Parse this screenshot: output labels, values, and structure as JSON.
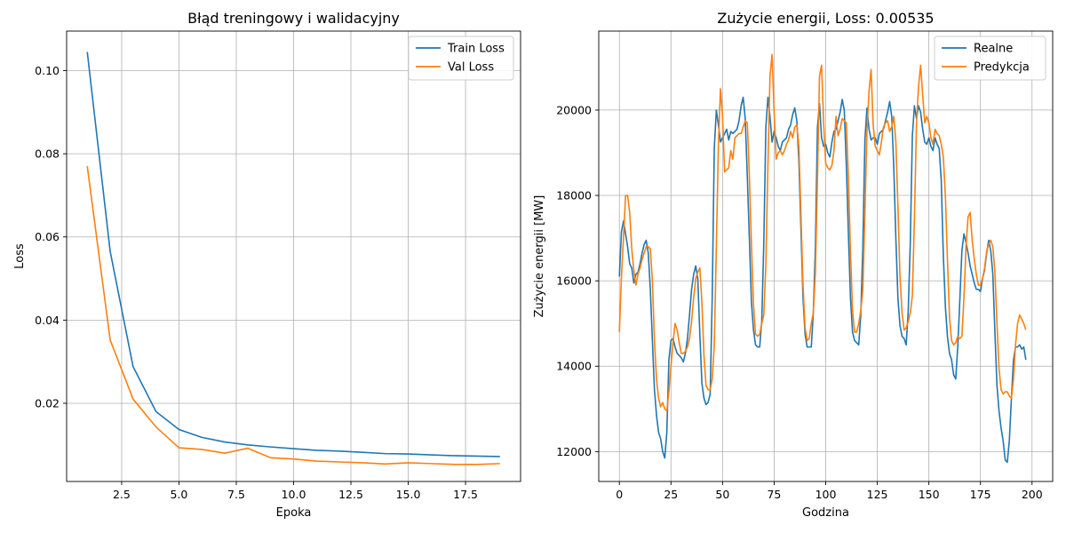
{
  "chart_data": [
    {
      "type": "line",
      "title": "Błąd treningowy i walidacyjny",
      "xlabel": "Epoka",
      "ylabel": "Loss",
      "xlim": [
        0.1,
        19.9
      ],
      "ylim": [
        0.0012,
        0.1095
      ],
      "xticks": [
        2.5,
        5.0,
        7.5,
        10.0,
        12.5,
        15.0,
        17.5
      ],
      "xtick_labels": [
        "2.5",
        "5.0",
        "7.5",
        "10.0",
        "12.5",
        "15.0",
        "17.5"
      ],
      "yticks": [
        0.02,
        0.04,
        0.06,
        0.08,
        0.1
      ],
      "ytick_labels": [
        "0.02",
        "0.04",
        "0.06",
        "0.08",
        "0.10"
      ],
      "grid": true,
      "legend_position": "top-right",
      "x": [
        1,
        2,
        3,
        4,
        5,
        6,
        7,
        8,
        9,
        10,
        11,
        12,
        13,
        14,
        15,
        16,
        17,
        18,
        19
      ],
      "series": [
        {
          "name": "Train Loss",
          "color": "#1f77b4",
          "values": [
            0.1045,
            0.0565,
            0.0288,
            0.018,
            0.0137,
            0.0118,
            0.0107,
            0.01,
            0.0095,
            0.0091,
            0.0087,
            0.0085,
            0.0082,
            0.0079,
            0.0078,
            0.0076,
            0.0074,
            0.0073,
            0.0072
          ]
        },
        {
          "name": "Val Loss",
          "color": "#ff7f0e",
          "values": [
            0.077,
            0.0352,
            0.021,
            0.0143,
            0.0093,
            0.0089,
            0.008,
            0.0092,
            0.0069,
            0.0066,
            0.0061,
            0.0059,
            0.0057,
            0.0054,
            0.0057,
            0.0055,
            0.0053,
            0.0053,
            0.0055
          ]
        }
      ]
    },
    {
      "type": "line",
      "title": "Zużycie energii, Loss: 0.00535",
      "xlabel": "Godzina",
      "ylabel": "Zużycie energii [MW]",
      "xlim": [
        -10,
        210
      ],
      "ylim": [
        11300,
        21850
      ],
      "xticks": [
        0,
        25,
        50,
        75,
        100,
        125,
        150,
        175,
        200
      ],
      "xtick_labels": [
        "0",
        "25",
        "50",
        "75",
        "100",
        "125",
        "150",
        "175",
        "200"
      ],
      "yticks": [
        12000,
        14000,
        16000,
        18000,
        20000
      ],
      "ytick_labels": [
        "12000",
        "14000",
        "16000",
        "18000",
        "20000"
      ],
      "grid": true,
      "legend_position": "top-right",
      "x_start": 0,
      "x_step": 1,
      "series": [
        {
          "name": "Realne",
          "color": "#1f77b4",
          "values": [
            16100,
            17150,
            17400,
            17100,
            16800,
            16400,
            16300,
            15950,
            16150,
            16200,
            16400,
            16650,
            16850,
            16950,
            16650,
            15800,
            14600,
            13450,
            12850,
            12450,
            12300,
            12000,
            11850,
            12450,
            14150,
            14600,
            14650,
            14450,
            14300,
            14250,
            14200,
            14100,
            14300,
            14650,
            15200,
            15800,
            16150,
            16350,
            16050,
            14750,
            13600,
            13250,
            13100,
            13150,
            13350,
            15600,
            19100,
            20000,
            19650,
            19250,
            19350,
            19450,
            19550,
            19300,
            19500,
            19450,
            19500,
            19550,
            19750,
            20100,
            20300,
            19800,
            18450,
            17000,
            15500,
            14850,
            14500,
            14450,
            14450,
            15050,
            16900,
            19600,
            20300,
            19850,
            19250,
            19500,
            19350,
            19150,
            19050,
            19250,
            19300,
            19350,
            19550,
            19650,
            19900,
            20050,
            19750,
            18800,
            17200,
            15600,
            14750,
            14450,
            14450,
            14450,
            15250,
            16800,
            19600,
            20150,
            19350,
            19150,
            19200,
            19000,
            18900,
            19250,
            19500,
            19550,
            19750,
            19950,
            20250,
            20000,
            18700,
            17100,
            15600,
            14800,
            14600,
            14550,
            14500,
            15200,
            16800,
            19300,
            20050,
            19550,
            19300,
            19350,
            19350,
            19200,
            19450,
            19500,
            19550,
            19750,
            19950,
            20200,
            19850,
            18650,
            17000,
            15600,
            14950,
            14700,
            14650,
            14500,
            15300,
            16900,
            19400,
            20100,
            19800,
            20100,
            19950,
            19550,
            19250,
            19200,
            19350,
            19150,
            19050,
            19350,
            19200,
            19100,
            18350,
            16600,
            15400,
            14700,
            14300,
            14150,
            13800,
            13700,
            14450,
            15550,
            16700,
            17100,
            16900,
            16650,
            16350,
            16150,
            15950,
            15800,
            15800,
            15750,
            16050,
            16250,
            16650,
            16950,
            16700,
            16150,
            14800,
            13550,
            12950,
            12550,
            12250,
            11800,
            11750,
            12250,
            13250,
            14150,
            14450,
            14450,
            14500,
            14400,
            14450,
            14150
          ]
        },
        {
          "name": "Predykcja",
          "color": "#ff7f0e",
          "values": [
            14800,
            16100,
            17000,
            18000,
            18000,
            17600,
            16750,
            16250,
            15900,
            16150,
            16300,
            16500,
            16650,
            16800,
            16800,
            16750,
            16000,
            14600,
            13700,
            13250,
            13050,
            13150,
            13000,
            12950,
            13400,
            14000,
            14550,
            15000,
            14850,
            14550,
            14300,
            14300,
            14350,
            14450,
            14650,
            15050,
            15600,
            16050,
            16200,
            16300,
            15500,
            14250,
            13550,
            13450,
            13450,
            13700,
            14500,
            16800,
            19200,
            20500,
            19850,
            18550,
            18600,
            18650,
            19050,
            18850,
            19350,
            19400,
            19450,
            19450,
            19600,
            19750,
            19700,
            18450,
            16850,
            15450,
            14750,
            14700,
            14750,
            15000,
            15200,
            16400,
            18700,
            20800,
            21300,
            19950,
            18850,
            19000,
            19050,
            18950,
            19050,
            19200,
            19300,
            19500,
            19350,
            19600,
            19650,
            19150,
            17550,
            15900,
            14900,
            14600,
            14650,
            15000,
            15250,
            16200,
            18400,
            20800,
            21050,
            19700,
            18750,
            18650,
            18600,
            18700,
            19050,
            19850,
            19400,
            19550,
            19800,
            19750,
            19700,
            18400,
            16700,
            15300,
            14800,
            14800,
            15000,
            15300,
            15800,
            17600,
            19500,
            20450,
            20950,
            19650,
            19150,
            19050,
            18950,
            19250,
            19600,
            19700,
            19750,
            19500,
            19600,
            19850,
            19250,
            17750,
            16100,
            15250,
            14850,
            14900,
            15050,
            15250,
            15650,
            17450,
            19700,
            20550,
            21050,
            20350,
            19700,
            19850,
            19700,
            19350,
            19200,
            19550,
            19450,
            19400,
            19200,
            18900,
            18000,
            16500,
            15150,
            14600,
            14500,
            14550,
            14700,
            14650,
            14700,
            15600,
            16800,
            17500,
            17600,
            16950,
            16500,
            16150,
            15900,
            15900,
            16050,
            16300,
            16700,
            16850,
            16950,
            16800,
            16200,
            15000,
            13950,
            13450,
            13350,
            13400,
            13400,
            13300,
            13250,
            13700,
            14500,
            15000,
            15200,
            15100,
            15000,
            14850
          ]
        }
      ]
    }
  ]
}
